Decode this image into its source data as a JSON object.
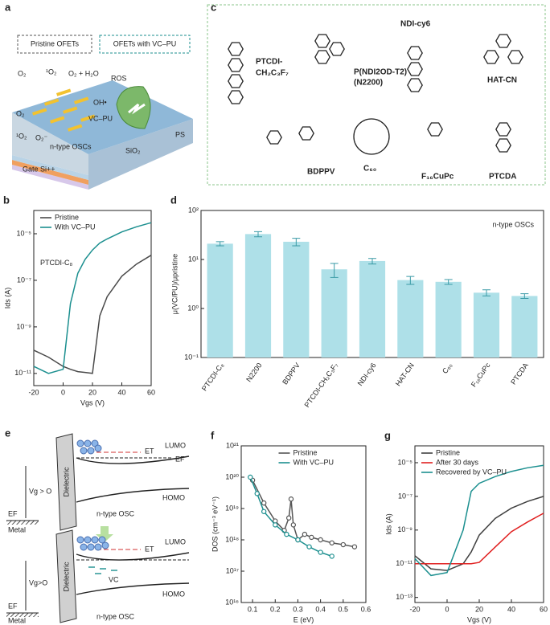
{
  "diagram_a": {
    "label": "a",
    "callouts": [
      "Pristine OFETs",
      "OFETs with VC–PU"
    ],
    "species": [
      "O₂",
      "¹O₂",
      "O₂ + H₂O",
      "ROS",
      "OH•",
      "VC–PU",
      "O₂",
      "¹O₂",
      "O₂⁻"
    ],
    "layers": [
      "n-type OSCs",
      "PS",
      "SiO₂",
      "Gate Si++"
    ]
  },
  "diagram_c": {
    "label": "c",
    "molecules": [
      "PTCDI-",
      "CH₂C₃F₇",
      "P(NDI2OD-T2)",
      "(N2200)",
      "NDI-cy6",
      "HAT-CN",
      "BDPPV",
      "C₆₀",
      "F₁₆CuPc",
      "PTCDA"
    ]
  },
  "diagram_e": {
    "label": "e",
    "top": [
      "LUMO",
      "ET",
      "EF",
      "Dielectric",
      "Vg > O",
      "EF",
      "Metal",
      "n-type OSC",
      "HOMO"
    ],
    "bottom": [
      "LUMO",
      "ET",
      "Dielectric",
      "VC",
      "Vg>O",
      "EF",
      "Metal",
      "n-type OSC",
      "HOMO"
    ]
  },
  "chart_data": [
    {
      "type": "line",
      "label": "b",
      "log_y": true,
      "xlabel": "Vgs (V)",
      "ylabel": "Ids (A)",
      "annotation": "PTCDI-C₈",
      "legend": "upper left",
      "x": [
        -20,
        -10,
        0,
        5,
        10,
        15,
        20,
        25,
        30,
        40,
        50,
        60
      ],
      "xlim": [
        -20,
        60
      ],
      "xticks": [
        -20,
        0,
        20,
        40,
        60
      ],
      "ylim": [
        3e-12,
        0.0001
      ],
      "yticks": [
        {
          "value": 1e-11,
          "label": "10⁻¹¹"
        },
        {
          "value": 1e-09,
          "label": "10⁻⁹"
        },
        {
          "value": 1e-07,
          "label": "10⁻⁷"
        },
        {
          "value": 1e-05,
          "label": "10⁻⁵"
        }
      ],
      "series": [
        {
          "name": "Pristine",
          "color": "#4a4a4a",
          "values": [
            1e-10,
            5e-11,
            2e-11,
            1.5e-11,
            1.2e-11,
            1.1e-11,
            1e-11,
            3e-09,
            2e-08,
            1.5e-07,
            5e-07,
            1.2e-06
          ]
        },
        {
          "name": "With VC–PU",
          "color": "#1b8f8f",
          "values": [
            2e-11,
            1e-11,
            1.5e-11,
            1e-08,
            2e-07,
            8e-07,
            2e-06,
            4e-06,
            6e-06,
            1.2e-05,
            2e-05,
            3e-05
          ]
        }
      ]
    },
    {
      "type": "bar",
      "label": "d",
      "log_y": true,
      "ylabel": "μ(VC/PU)/μpristine",
      "annotation": "n-type OSCs",
      "color": "#aee0e8",
      "error_color": "#3a9aa6",
      "categories": [
        "PTCDI-C₈",
        "N2200",
        "BDPPV",
        "PTCDI-CH₂C₃F₇",
        "NDI-cy6",
        "HAT-CN",
        "C₆₀",
        "F₁₆CuPc",
        "PTCDA"
      ],
      "values": [
        21,
        33,
        23,
        6.3,
        9.3,
        3.8,
        3.5,
        2.1,
        1.8
      ],
      "errors": [
        2,
        4,
        4,
        2,
        1.2,
        0.7,
        0.4,
        0.3,
        0.2
      ],
      "ylim": [
        0.1,
        100
      ],
      "yticks": [
        {
          "value": 0.1,
          "label": "10⁻¹"
        },
        {
          "value": 1,
          "label": "10⁰"
        },
        {
          "value": 10,
          "label": "10¹"
        },
        {
          "value": 100,
          "label": "10²"
        }
      ]
    },
    {
      "type": "line",
      "label": "f",
      "log_y": true,
      "markers": true,
      "xlabel": "E (eV)",
      "ylabel": "DOS (cm⁻³ eV⁻¹)",
      "legend": "upper center",
      "xlim": [
        0.05,
        0.6
      ],
      "xticks": [
        0.1,
        0.2,
        0.3,
        0.4,
        0.5,
        0.6
      ],
      "ylim": [
        1e+16,
        1e+21
      ],
      "yticks": [
        {
          "value": 1e+16,
          "label": "10¹⁶"
        },
        {
          "value": 1e+17,
          "label": "10¹⁷"
        },
        {
          "value": 1e+18,
          "label": "10¹⁸"
        },
        {
          "value": 1e+19,
          "label": "10¹⁹"
        },
        {
          "value": 1e+20,
          "label": "10²⁰"
        },
        {
          "value": 1e+21,
          "label": "10²¹"
        }
      ],
      "series": [
        {
          "name": "Pristine",
          "color": "#555555",
          "x": [
            0.1,
            0.15,
            0.2,
            0.24,
            0.26,
            0.27,
            0.28,
            0.3,
            0.33,
            0.36,
            0.4,
            0.45,
            0.5,
            0.55
          ],
          "values": [
            8e+19,
            1.5e+19,
            4e+18,
            2e+18,
            5e+18,
            2e+19,
            3e+18,
            1e+18,
            1.5e+18,
            1.2e+18,
            1e+18,
            8e+17,
            7e+17,
            6e+17
          ]
        },
        {
          "name": "With VC–PU",
          "color": "#1b8f8f",
          "x": [
            0.09,
            0.12,
            0.15,
            0.2,
            0.25,
            0.3,
            0.35,
            0.4,
            0.45
          ],
          "values": [
            1e+20,
            3e+19,
            8e+18,
            3e+18,
            1.5e+18,
            1e+18,
            6e+17,
            4e+17,
            3e+17
          ]
        }
      ]
    },
    {
      "type": "line",
      "label": "g",
      "log_y": true,
      "xlabel": "Vgs (V)",
      "ylabel": "Ids (A)",
      "legend": "upper left",
      "x": [
        -20,
        -10,
        0,
        10,
        15,
        20,
        30,
        40,
        50,
        60
      ],
      "xlim": [
        -20,
        60
      ],
      "xticks": [
        -20,
        0,
        20,
        40,
        60
      ],
      "ylim": [
        5e-14,
        0.0001
      ],
      "yticks": [
        {
          "value": 1e-13,
          "label": "10⁻¹³"
        },
        {
          "value": 1e-11,
          "label": "10⁻¹¹"
        },
        {
          "value": 1e-09,
          "label": "10⁻⁹"
        },
        {
          "value": 1e-07,
          "label": "10⁻⁷"
        },
        {
          "value": 1e-05,
          "label": "10⁻⁵"
        }
      ],
      "series": [
        {
          "name": "Pristine",
          "color": "#404040",
          "values": [
            3e-11,
            5e-12,
            4e-12,
            1e-11,
            5e-11,
            5e-10,
            5e-09,
            2e-08,
            5e-08,
            1e-07
          ]
        },
        {
          "name": "After 30 days",
          "color": "#e02020",
          "values": [
            1e-11,
            1e-11,
            1e-11,
            1e-11,
            1e-11,
            1.2e-11,
            1e-10,
            8e-10,
            3e-09,
            1e-08
          ]
        },
        {
          "name": "Recovered by VC–PU",
          "color": "#1b8f8f",
          "values": [
            2e-11,
            2e-12,
            3e-12,
            1e-09,
            2e-07,
            6e-07,
            1.5e-06,
            3e-06,
            5e-06,
            7e-06
          ]
        }
      ]
    }
  ]
}
